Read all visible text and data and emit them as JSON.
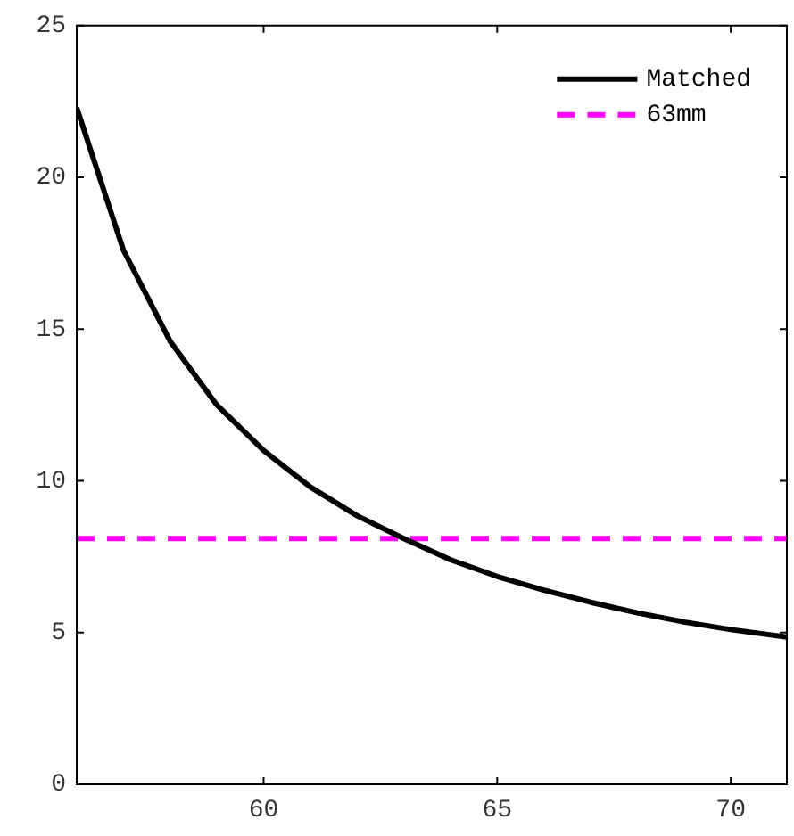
{
  "chart_data": {
    "type": "line",
    "x": [
      56,
      57,
      58,
      59,
      60,
      61,
      62,
      63,
      64,
      65,
      66,
      67,
      68,
      69,
      70,
      71.2
    ],
    "series": [
      {
        "name": "Matched",
        "color": "#000000",
        "values": [
          22.3,
          17.6,
          14.6,
          12.5,
          11.0,
          9.8,
          8.85,
          8.1,
          7.4,
          6.85,
          6.4,
          6.0,
          5.65,
          5.35,
          5.1,
          4.85
        ],
        "line_style": "solid"
      },
      {
        "name": "63mm",
        "color": "#ff00ff",
        "x": [
          56,
          71.2
        ],
        "values": [
          8.1,
          8.1
        ],
        "line_style": "dashed"
      }
    ],
    "xlim": [
      56,
      71.2
    ],
    "xticks": [
      60,
      65,
      70
    ],
    "ylim": [
      0,
      25
    ],
    "yticks": [
      0,
      5,
      10,
      15,
      20,
      25
    ],
    "grid": false,
    "legend": "top right",
    "marker": "none"
  }
}
